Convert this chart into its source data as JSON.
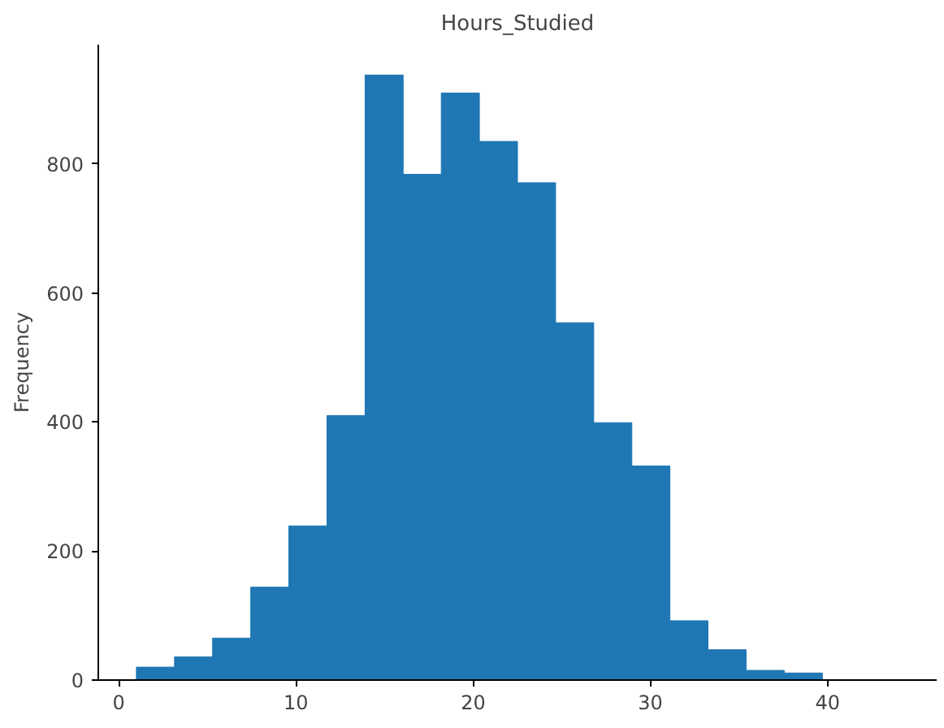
{
  "chart_data": {
    "type": "histogram",
    "title": "Hours_Studied",
    "ylabel": "Frequency",
    "color": "#1f77b4",
    "bins": [
      1,
      3.15,
      5.3,
      7.45,
      9.6,
      11.75,
      13.9,
      16.05,
      18.2,
      20.35,
      22.5,
      24.65,
      26.8,
      28.95,
      31.1,
      33.25,
      35.4,
      37.55,
      39.7
    ],
    "values": [
      20,
      36,
      65,
      144,
      239,
      410,
      938,
      784,
      910,
      835,
      771,
      554,
      399,
      332,
      92,
      47,
      15,
      11
    ],
    "xlim": [
      -1.15,
      46.15
    ],
    "xticks": [
      0,
      10,
      20,
      30,
      40
    ],
    "ylim": [
      0,
      985
    ],
    "yticks": [
      0,
      200,
      400,
      600,
      800
    ],
    "grid": false
  }
}
